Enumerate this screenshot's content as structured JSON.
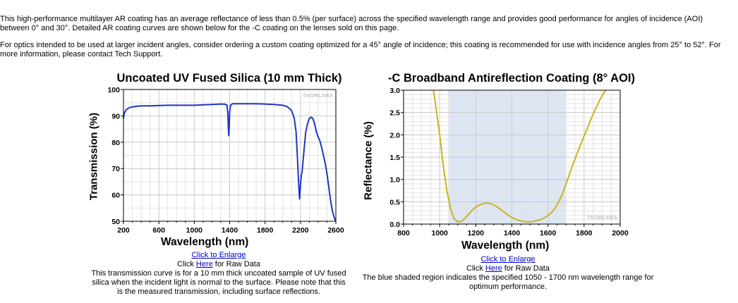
{
  "intro": {
    "paragraph1": "This high-performance multilayer AR coating has an average reflectance of less than 0.5% (per surface) across the specified wavelength range and provides good performance for angles of incidence (AOI) between 0° and 30°. Detailed AR coating curves are shown below for the -C coating on the lenses sold on this page.",
    "paragraph2": "For optics intended to be used at larger incident angles, consider ordering a custom coating optimized for a 45° angle of incidence; this coating is recommended for use with incidence angles from 25° to 52°. For more information, please contact Tech Support."
  },
  "chart_data": [
    {
      "type": "line",
      "title": "Uncoated UV Fused Silica (10 mm Thick)",
      "xlabel": "Wavelength (nm)",
      "ylabel": "Transmission (%)",
      "xlim": [
        200,
        2600
      ],
      "ylim": [
        50,
        100
      ],
      "xticks": [
        "200",
        "600",
        "1000",
        "1400",
        "1800",
        "2200",
        "2600"
      ],
      "yticks": [
        "50",
        "60",
        "70",
        "80",
        "90",
        "100"
      ],
      "grid": true,
      "watermark": "THORLABS",
      "color": "#1f35c4",
      "series": [
        {
          "x": [
            200,
            205,
            215,
            230,
            260,
            300,
            350,
            400,
            500,
            600,
            700,
            800,
            900,
            1000,
            1100,
            1200,
            1300,
            1350,
            1370,
            1380,
            1385,
            1390,
            1395,
            1400,
            1410,
            1430,
            1500,
            1600,
            1700,
            1800,
            1900,
            2000,
            2050,
            2100,
            2130,
            2150,
            2165,
            2175,
            2185,
            2190,
            2195,
            2200,
            2205,
            2210,
            2220,
            2240,
            2260,
            2280,
            2300,
            2320,
            2340,
            2360,
            2380,
            2400,
            2420,
            2440,
            2460,
            2480,
            2500,
            2520,
            2540,
            2560,
            2580,
            2600
          ],
          "y": [
            89.0,
            90.3,
            91.5,
            92.3,
            93.0,
            93.4,
            93.6,
            93.8,
            93.8,
            93.9,
            94.0,
            94.0,
            94.0,
            94.0,
            94.2,
            94.3,
            94.5,
            94.4,
            94.0,
            91.0,
            86.0,
            82.5,
            86.0,
            91.5,
            94.0,
            94.6,
            94.6,
            94.6,
            94.6,
            94.5,
            94.3,
            94.0,
            93.5,
            92.0,
            89.0,
            84.0,
            75.0,
            67.5,
            61.0,
            58.5,
            61.0,
            63.5,
            66.0,
            67.5,
            69.0,
            77.0,
            84.0,
            87.0,
            89.0,
            89.5,
            89.0,
            87.0,
            84.0,
            82.0,
            80.5,
            78.0,
            75.0,
            72.0,
            68.0,
            63.0,
            58.0,
            54.0,
            51.5,
            50.0
          ]
        }
      ],
      "caption": {
        "enlarge_link": "Click to Enlarge",
        "rawdata_prefix": "Click ",
        "rawdata_link": "Here",
        "rawdata_suffix": " for Raw Data",
        "description": "This transmission curve is for a 10 mm thick uncoated sample of UV fused silica when the incident light is normal to the surface. Please note that this is the measured transmission, including surface reflections."
      }
    },
    {
      "type": "line",
      "title": "-C Broadband Antireflection Coating (8° AOI)",
      "xlabel": "Wavelength (nm)",
      "ylabel": "Reflectance (%)",
      "xlim": [
        800,
        2000
      ],
      "ylim": [
        0.0,
        3.0
      ],
      "xticks": [
        "800",
        "1000",
        "1200",
        "1400",
        "1600",
        "1800",
        "2000"
      ],
      "yticks": [
        "0.0",
        "0.5",
        "1.0",
        "1.5",
        "2.0",
        "2.5",
        "3.0"
      ],
      "grid": true,
      "watermark": "THORLABS",
      "color": "#c9b418",
      "shade_color": "#dce6f5",
      "shaded_region": [
        1050,
        1700
      ],
      "series": [
        {
          "x": [
            966,
            980,
            1000,
            1020,
            1040,
            1060,
            1080,
            1100,
            1120,
            1140,
            1160,
            1180,
            1200,
            1220,
            1240,
            1260,
            1280,
            1300,
            1320,
            1340,
            1360,
            1380,
            1400,
            1420,
            1440,
            1460,
            1480,
            1500,
            1520,
            1540,
            1560,
            1580,
            1600,
            1620,
            1640,
            1660,
            1680,
            1700,
            1720,
            1740,
            1760,
            1780,
            1800,
            1820,
            1840,
            1860,
            1880,
            1900,
            1920
          ],
          "y": [
            3.0,
            2.6,
            2.0,
            1.3,
            0.75,
            0.35,
            0.12,
            0.05,
            0.06,
            0.13,
            0.22,
            0.31,
            0.38,
            0.43,
            0.46,
            0.47,
            0.46,
            0.43,
            0.38,
            0.32,
            0.26,
            0.2,
            0.15,
            0.11,
            0.08,
            0.06,
            0.05,
            0.05,
            0.06,
            0.08,
            0.1,
            0.14,
            0.19,
            0.26,
            0.36,
            0.5,
            0.68,
            0.9,
            1.13,
            1.35,
            1.57,
            1.77,
            1.97,
            2.17,
            2.37,
            2.55,
            2.72,
            2.88,
            3.0
          ]
        }
      ],
      "caption": {
        "enlarge_link": "Click to Enlarge",
        "rawdata_prefix": "Click ",
        "rawdata_link": "Here",
        "rawdata_suffix": " for Raw Data",
        "description": "The blue shaded region indicates the specified 1050 - 1700 nm wavelength range for optimum performance."
      }
    }
  ]
}
